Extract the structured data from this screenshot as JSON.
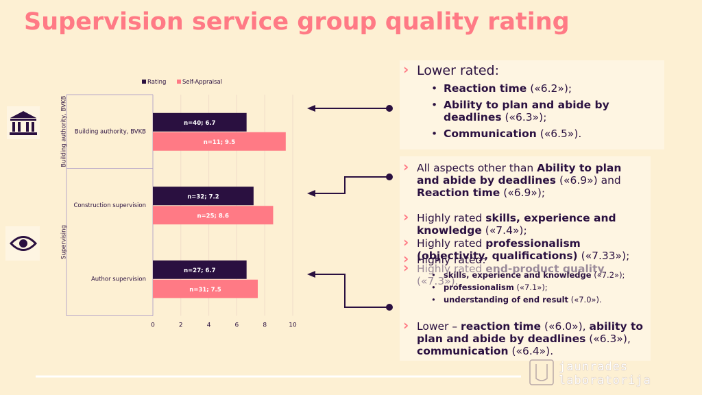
{
  "title": "Supervision service group quality rating",
  "chart_data": {
    "type": "bar",
    "orientation": "horizontal",
    "categories": [
      "Building authority, BVKB",
      "Construction supervision",
      "Author supervision"
    ],
    "groups": [
      "Building authority, BVKB",
      "Supervising"
    ],
    "series": [
      {
        "name": "Rating",
        "color": "#2a1040",
        "values": [
          6.7,
          7.2,
          6.7
        ],
        "value_labels": [
          "n=40; 6.7",
          "n=32; 7.2",
          "n=27; 6.7"
        ]
      },
      {
        "name": "Self-Appraisal",
        "color": "#ff7a85",
        "values": [
          9.5,
          8.6,
          7.5
        ],
        "value_labels": [
          "n=11; 9.5",
          "n=25; 8.6",
          "n=31; 7.5"
        ]
      }
    ],
    "xlim": [
      0,
      10
    ],
    "xticks": [
      0,
      2,
      4,
      6,
      8,
      10
    ],
    "grid": true,
    "legend": "top"
  },
  "panel1": {
    "heading": "Lower rated:",
    "items": [
      [
        {
          "text": "Reaction time",
          "bold": true
        },
        {
          "text": " («6.2»);"
        }
      ],
      [
        {
          "text": "Ability to plan and abide by deadlines",
          "bold": true
        },
        {
          "text": " («6.3»);"
        }
      ],
      [
        {
          "text": "Communication",
          "bold": true
        },
        {
          "text": " («6.5»)."
        }
      ]
    ]
  },
  "panel2": {
    "paragraphs": [
      [
        {
          "text": "All aspects other than "
        },
        {
          "text": "Ability to plan and abide by deadlines",
          "bold": true
        },
        {
          "text": " («6.9») and "
        },
        {
          "text": "Reaction time",
          "bold": true
        },
        {
          "text": " («6.9»);"
        }
      ],
      [
        {
          "text": "Highly rated "
        },
        {
          "text": "skills, experience and knowledge",
          "bold": true
        },
        {
          "text": " («7.4»);"
        }
      ],
      [
        {
          "text": "Highly rated "
        },
        {
          "text": "professionalism (objectivity, qualifications)",
          "bold": true
        },
        {
          "text": " («7.33»);"
        }
      ],
      [
        {
          "text": "Highly rated "
        },
        {
          "text": "end-product quality",
          "bold": true
        },
        {
          "text": " («7.3»)."
        }
      ],
      [
        {
          "text": "Highly rated:"
        }
      ],
      [
        {
          "text": "Lower – "
        },
        {
          "text": "reaction time",
          "bold": true
        },
        {
          "text": " («6.0»), "
        },
        {
          "text": "ability to plan and abide by deadlines",
          "bold": true
        },
        {
          "text": " («6.3»), "
        },
        {
          "text": "communication",
          "bold": true
        },
        {
          "text": " («6.4»)."
        }
      ]
    ],
    "subitems": [
      [
        {
          "text": "skills, experience and knowledge",
          "bold": true
        },
        {
          "text": " («7.2»);"
        }
      ],
      [
        {
          "text": "professionalism",
          "bold": true
        },
        {
          "text": " («7.1»);"
        }
      ],
      [
        {
          "text": "understanding of end result",
          "bold": true
        },
        {
          "text": " («7.0»)."
        }
      ]
    ]
  },
  "logo": [
    "jaunrades",
    "laboratorija"
  ]
}
